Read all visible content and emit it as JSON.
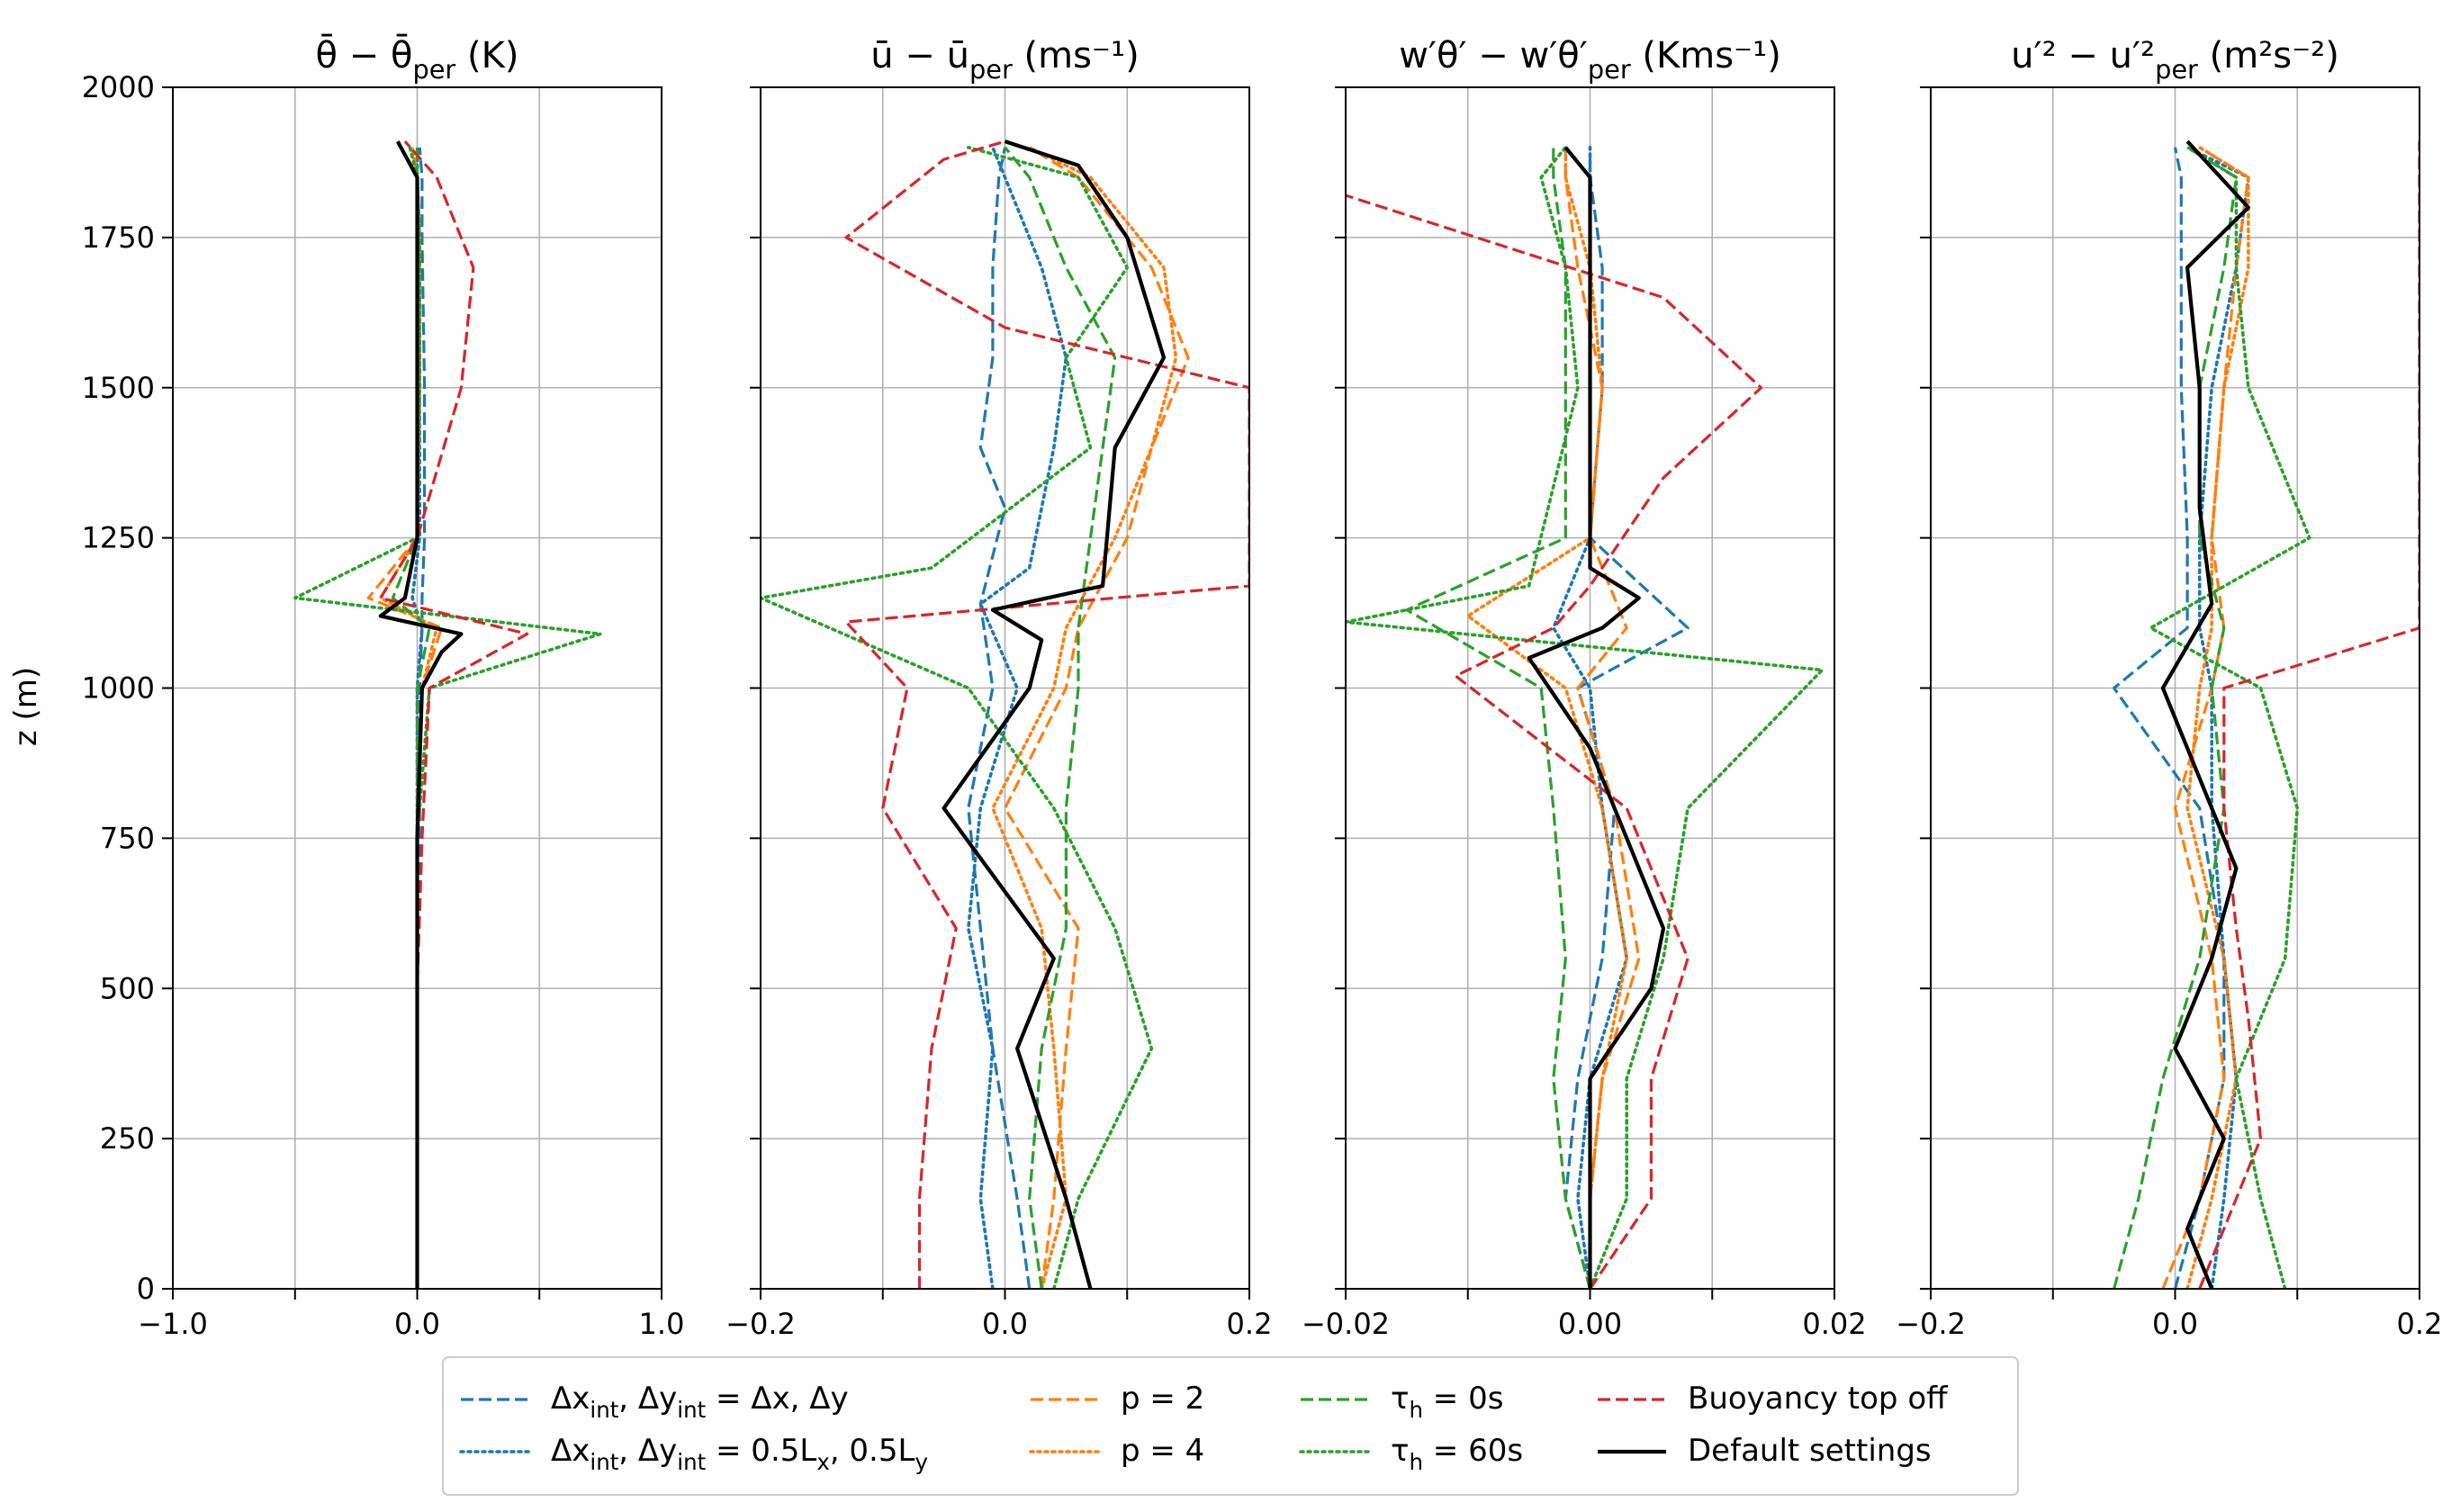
{
  "figure": {
    "ylabel": "z (m)",
    "yticks": [
      "0",
      "250",
      "500",
      "750",
      "1000",
      "1250",
      "1500",
      "1750",
      "2000"
    ]
  },
  "legend": {
    "entries": [
      {
        "label": "Δx_int, Δy_int = Δx, Δy",
        "color": "#1f77b4",
        "style": "dashed"
      },
      {
        "label": "Δx_int, Δy_int = 0.5L_x, 0.5L_y",
        "color": "#1f77b4",
        "style": "dotted"
      },
      {
        "label": "p = 2",
        "color": "#ff7f0e",
        "style": "dashed"
      },
      {
        "label": "p = 4",
        "color": "#ff7f0e",
        "style": "dotted"
      },
      {
        "label": "τ_h = 0s",
        "color": "#2ca02c",
        "style": "dashed"
      },
      {
        "label": "τ_h = 60s",
        "color": "#2ca02c",
        "style": "dotted"
      },
      {
        "label": "Buoyancy top off",
        "color": "#d62728",
        "style": "dashed"
      },
      {
        "label": "Default settings",
        "color": "#000000",
        "style": "solid"
      }
    ]
  },
  "chart_data": [
    {
      "type": "line",
      "title": "θ̄ − θ̄_per (K)",
      "xlim": [
        -1.0,
        1.0
      ],
      "ylim": [
        0,
        2000
      ],
      "xticks": [
        "−1.0",
        "0.0",
        "1.0"
      ],
      "grid": true,
      "series": [
        {
          "name": "Δx_int, Δy_int = Δx, Δy",
          "x": [
            0.0,
            0.0,
            0.0,
            0.01,
            0.01,
            0.02,
            0.02,
            0.03,
            0.03,
            0.02,
            0.02,
            0.01
          ],
          "y": [
            0,
            250,
            500,
            750,
            1000,
            1100,
            1150,
            1250,
            1500,
            1750,
            1850,
            1900
          ]
        },
        {
          "name": "Δx_int, Δy_int = 0.5L_x, 0.5L_y",
          "x": [
            0.0,
            0.0,
            0.0,
            0.0,
            0.0,
            0.02,
            -0.02,
            0.01,
            0.01,
            0.01,
            0.0,
            0.0
          ],
          "y": [
            0,
            250,
            500,
            750,
            1000,
            1100,
            1150,
            1250,
            1500,
            1750,
            1850,
            1900
          ]
        },
        {
          "name": "p = 2",
          "x": [
            0.0,
            0.0,
            0.0,
            0.0,
            0.02,
            0.1,
            -0.2,
            0.0,
            0.01,
            0.01,
            0.0,
            -0.02
          ],
          "y": [
            0,
            250,
            500,
            750,
            1000,
            1100,
            1150,
            1250,
            1500,
            1750,
            1850,
            1900
          ]
        },
        {
          "name": "p = 4",
          "x": [
            0.0,
            0.0,
            0.0,
            0.0,
            0.02,
            0.08,
            -0.15,
            0.0,
            0.01,
            0.01,
            0.0,
            -0.02
          ],
          "y": [
            0,
            250,
            500,
            750,
            1000,
            1100,
            1150,
            1250,
            1500,
            1750,
            1850,
            1900
          ]
        },
        {
          "name": "τ_h = 0s",
          "x": [
            0.0,
            0.0,
            0.0,
            0.0,
            0.0,
            0.05,
            -0.1,
            0.0,
            0.0,
            0.0,
            0.0,
            0.0
          ],
          "y": [
            0,
            250,
            500,
            750,
            1000,
            1100,
            1150,
            1250,
            1500,
            1750,
            1850,
            1900
          ]
        },
        {
          "name": "τ_h = 60s",
          "x": [
            0.0,
            0.0,
            0.0,
            0.0,
            0.05,
            0.75,
            -0.5,
            0.0,
            0.01,
            0.01,
            0.0,
            -0.03
          ],
          "y": [
            0,
            250,
            500,
            750,
            1000,
            1090,
            1150,
            1250,
            1500,
            1750,
            1850,
            1900
          ]
        },
        {
          "name": "Buoyancy top off",
          "x": [
            0.0,
            0.0,
            0.0,
            0.02,
            0.05,
            0.45,
            -0.15,
            0.0,
            0.18,
            0.23,
            0.08,
            -0.05
          ],
          "y": [
            0,
            250,
            500,
            750,
            1000,
            1090,
            1150,
            1250,
            1500,
            1700,
            1850,
            1910
          ]
        },
        {
          "name": "Default settings",
          "x": [
            0.0,
            0.0,
            0.0,
            0.0,
            0.02,
            0.1,
            0.18,
            -0.15,
            -0.05,
            0.0,
            0.0,
            0.0,
            0.0,
            -0.08
          ],
          "y": [
            0,
            250,
            500,
            750,
            1000,
            1060,
            1090,
            1120,
            1150,
            1250,
            1500,
            1750,
            1850,
            1910
          ]
        }
      ]
    },
    {
      "type": "line",
      "title": "ū − ū_per (ms⁻¹)",
      "xlim": [
        -0.2,
        0.2
      ],
      "ylim": [
        0,
        2000
      ],
      "xticks": [
        "−0.2",
        "0.0",
        "0.2"
      ],
      "grid": true,
      "series": [
        {
          "name": "Δx_int, Δy_int = Δx, Δy",
          "x": [
            0.02,
            0.01,
            -0.01,
            -0.02,
            -0.03,
            -0.01,
            -0.02,
            0.0,
            -0.02,
            -0.01,
            -0.01,
            -0.005,
            0.0
          ],
          "y": [
            0,
            150,
            400,
            600,
            800,
            1000,
            1140,
            1300,
            1400,
            1550,
            1700,
            1850,
            1900
          ]
        },
        {
          "name": "Δx_int, Δy_int = 0.5L_x, 0.5L_y",
          "x": [
            -0.01,
            -0.02,
            -0.01,
            -0.03,
            -0.02,
            0.01,
            -0.02,
            0.02,
            0.04,
            0.05,
            0.03,
            0.0,
            -0.01
          ],
          "y": [
            0,
            150,
            400,
            600,
            800,
            1000,
            1140,
            1200,
            1400,
            1550,
            1700,
            1850,
            1900
          ]
        },
        {
          "name": "p = 2",
          "x": [
            0.03,
            0.04,
            0.05,
            0.06,
            0.0,
            0.05,
            0.06,
            0.1,
            0.12,
            0.15,
            0.12,
            0.06,
            0.02
          ],
          "y": [
            0,
            150,
            400,
            600,
            800,
            1000,
            1100,
            1250,
            1400,
            1550,
            1700,
            1850,
            1900
          ]
        },
        {
          "name": "p = 4",
          "x": [
            0.03,
            0.05,
            0.04,
            0.03,
            -0.01,
            0.04,
            0.05,
            0.09,
            0.12,
            0.14,
            0.13,
            0.07,
            0.02
          ],
          "y": [
            0,
            150,
            400,
            600,
            800,
            1000,
            1100,
            1250,
            1400,
            1550,
            1700,
            1850,
            1900
          ]
        },
        {
          "name": "τ_h = 0s",
          "x": [
            0.03,
            0.02,
            0.03,
            0.05,
            0.05,
            0.06,
            0.06,
            0.07,
            0.08,
            0.09,
            0.05,
            0.02,
            0.0
          ],
          "y": [
            0,
            150,
            400,
            600,
            800,
            1000,
            1100,
            1250,
            1400,
            1550,
            1700,
            1850,
            1900
          ]
        },
        {
          "name": "τ_h = 60s",
          "x": [
            0.04,
            0.06,
            0.12,
            0.09,
            0.04,
            -0.03,
            -0.2,
            -0.06,
            0.07,
            0.05,
            0.1,
            0.06,
            -0.03
          ],
          "y": [
            0,
            150,
            400,
            600,
            800,
            1000,
            1150,
            1200,
            1400,
            1550,
            1700,
            1850,
            1900
          ]
        },
        {
          "name": "Buoyancy top off",
          "x": [
            -0.07,
            -0.07,
            -0.06,
            -0.04,
            -0.1,
            -0.08,
            -0.13,
            0.2,
            0.2,
            0.0,
            -0.13,
            -0.05,
            0.0
          ],
          "y": [
            0,
            150,
            400,
            600,
            800,
            1000,
            1110,
            1170,
            1500,
            1600,
            1750,
            1880,
            1910
          ]
        },
        {
          "name": "Default settings",
          "x": [
            0.07,
            0.05,
            0.01,
            0.04,
            -0.05,
            0.02,
            0.03,
            -0.01,
            0.08,
            0.09,
            0.13,
            0.1,
            0.06,
            0.0
          ],
          "y": [
            0,
            150,
            400,
            550,
            800,
            1000,
            1080,
            1130,
            1170,
            1400,
            1550,
            1750,
            1870,
            1910
          ]
        }
      ]
    },
    {
      "type": "line",
      "title": "w′θ′ − w′θ′_per (Kms⁻¹)",
      "xlim": [
        -0.02,
        0.02
      ],
      "ylim": [
        0,
        2000
      ],
      "xticks": [
        "−0.02",
        "0.00",
        "0.02"
      ],
      "grid": true,
      "series": [
        {
          "name": "Δx_int, Δy_int = Δx, Δy",
          "x": [
            0.0,
            -0.002,
            -0.001,
            0.001,
            0.002,
            -0.001,
            0.008,
            0.0,
            0.001,
            0.001,
            0.0,
            0.0
          ],
          "y": [
            0,
            150,
            350,
            550,
            800,
            1000,
            1100,
            1250,
            1500,
            1700,
            1850,
            1900
          ]
        },
        {
          "name": "Δx_int, Δy_int = 0.5L_x, 0.5L_y",
          "x": [
            0.0,
            -0.001,
            0.0,
            0.003,
            0.001,
            0.0,
            -0.003,
            0.0,
            0.0,
            0.0,
            0.0,
            0.0
          ],
          "y": [
            0,
            150,
            350,
            550,
            800,
            1000,
            1100,
            1250,
            1500,
            1700,
            1850,
            1900
          ]
        },
        {
          "name": "p = 2",
          "x": [
            0.0,
            0.0,
            0.001,
            0.004,
            0.002,
            -0.001,
            0.003,
            0.0,
            0.001,
            -0.001,
            -0.002,
            -0.002
          ],
          "y": [
            0,
            150,
            350,
            550,
            800,
            1000,
            1100,
            1250,
            1500,
            1700,
            1850,
            1900
          ]
        },
        {
          "name": "p = 4",
          "x": [
            0.0,
            0.0,
            0.001,
            0.003,
            0.001,
            -0.002,
            -0.01,
            0.0,
            0.001,
            0.0,
            -0.002,
            -0.002
          ],
          "y": [
            0,
            150,
            350,
            550,
            800,
            1000,
            1120,
            1250,
            1500,
            1700,
            1850,
            1900
          ]
        },
        {
          "name": "τ_h = 0s",
          "x": [
            0.0,
            -0.002,
            -0.003,
            -0.002,
            -0.003,
            -0.004,
            -0.015,
            -0.002,
            -0.002,
            -0.002,
            -0.003,
            -0.003
          ],
          "y": [
            0,
            150,
            350,
            550,
            800,
            1000,
            1130,
            1250,
            1500,
            1700,
            1850,
            1900
          ]
        },
        {
          "name": "τ_h = 60s",
          "x": [
            0.0,
            0.003,
            0.003,
            0.006,
            0.008,
            0.019,
            -0.02,
            -0.005,
            -0.001,
            -0.002,
            -0.004,
            -0.002
          ],
          "y": [
            0,
            150,
            350,
            550,
            800,
            1030,
            1110,
            1170,
            1500,
            1700,
            1850,
            1900
          ]
        },
        {
          "name": "Buoyancy top off",
          "x": [
            0.0,
            0.005,
            0.005,
            0.008,
            0.003,
            -0.011,
            -0.003,
            0.0,
            0.006,
            0.014,
            0.006,
            -0.02
          ],
          "y": [
            0,
            150,
            350,
            550,
            800,
            1020,
            1100,
            1170,
            1350,
            1500,
            1650,
            1820
          ]
        },
        {
          "name": "Default settings",
          "x": [
            0.0,
            0.0,
            0.0,
            0.005,
            0.006,
            0.0,
            -0.005,
            0.001,
            0.004,
            0.0,
            0.0,
            0.0,
            0.0,
            -0.002
          ],
          "y": [
            0,
            100,
            350,
            500,
            600,
            900,
            1050,
            1100,
            1150,
            1200,
            1500,
            1700,
            1850,
            1900
          ]
        }
      ]
    },
    {
      "type": "line",
      "title": "u′² − u′²_per (m²s⁻²)",
      "xlim": [
        -0.2,
        0.2
      ],
      "ylim": [
        0,
        2000
      ],
      "xticks": [
        "−0.2",
        "0.0",
        "0.2"
      ],
      "grid": true,
      "series": [
        {
          "name": "Δx_int, Δy_int = Δx, Δy",
          "x": [
            0.0,
            0.02,
            0.04,
            0.04,
            0.02,
            -0.05,
            0.01,
            0.01,
            0.005,
            0.005,
            0.005,
            0.0
          ],
          "y": [
            0,
            150,
            350,
            550,
            800,
            1000,
            1100,
            1250,
            1500,
            1700,
            1850,
            1900
          ]
        },
        {
          "name": "Δx_int, Δy_int = 0.5L_x, 0.5L_y",
          "x": [
            0.03,
            0.04,
            0.05,
            0.04,
            0.03,
            0.03,
            0.02,
            0.02,
            0.03,
            0.05,
            0.06,
            0.01
          ],
          "y": [
            0,
            150,
            350,
            550,
            800,
            1000,
            1100,
            1250,
            1500,
            1700,
            1850,
            1900
          ]
        },
        {
          "name": "p = 2",
          "x": [
            -0.01,
            0.02,
            0.04,
            0.03,
            0.0,
            0.03,
            0.04,
            0.03,
            0.04,
            0.05,
            0.06,
            0.02
          ],
          "y": [
            0,
            150,
            350,
            550,
            800,
            1000,
            1100,
            1250,
            1500,
            1700,
            1850,
            1900
          ]
        },
        {
          "name": "p = 4",
          "x": [
            0.01,
            0.03,
            0.05,
            0.04,
            0.01,
            0.02,
            0.03,
            0.03,
            0.04,
            0.06,
            0.06,
            0.02
          ],
          "y": [
            0,
            150,
            350,
            550,
            800,
            1000,
            1100,
            1250,
            1500,
            1700,
            1850,
            1900
          ]
        },
        {
          "name": "τ_h = 0s",
          "x": [
            -0.05,
            -0.03,
            -0.01,
            0.02,
            0.04,
            0.03,
            0.04,
            0.02,
            0.02,
            0.04,
            0.05,
            0.01
          ],
          "y": [
            0,
            150,
            350,
            550,
            800,
            1000,
            1100,
            1250,
            1500,
            1700,
            1850,
            1900
          ]
        },
        {
          "name": "τ_h = 60s",
          "x": [
            0.09,
            0.07,
            0.05,
            0.09,
            0.1,
            0.07,
            -0.02,
            0.11,
            0.06,
            0.05,
            0.05,
            0.01
          ],
          "y": [
            0,
            150,
            350,
            550,
            800,
            1000,
            1100,
            1250,
            1500,
            1700,
            1850,
            1900
          ]
        },
        {
          "name": "Buoyancy top off",
          "x": [
            0.02,
            0.07,
            0.06,
            0.05,
            0.04,
            0.04,
            0.2,
            0.2,
            0.2
          ],
          "y": [
            0,
            250,
            450,
            600,
            800,
            1000,
            1100,
            1850,
            1910
          ]
        },
        {
          "name": "Default settings",
          "x": [
            0.03,
            0.01,
            0.04,
            0.0,
            0.03,
            0.05,
            0.01,
            -0.01,
            0.03,
            0.02,
            0.02,
            0.01,
            0.06,
            0.01
          ],
          "y": [
            0,
            100,
            250,
            400,
            550,
            700,
            900,
            1000,
            1140,
            1300,
            1500,
            1700,
            1800,
            1910
          ]
        }
      ]
    }
  ]
}
